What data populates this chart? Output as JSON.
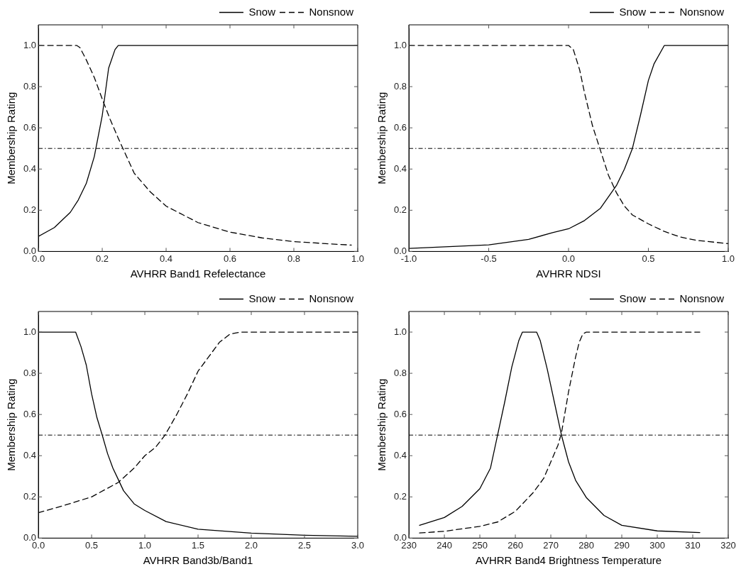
{
  "chart_data": [
    {
      "type": "line",
      "xlabel": "AVHRR Band1 Refelectance",
      "ylabel": "Membership Rating",
      "legend": "top right",
      "marker": "none",
      "grid": false,
      "xlim": [
        0,
        1
      ],
      "xticks": [
        {
          "value": 0,
          "label": "0.0"
        },
        {
          "value": 0.2,
          "label": "0.2"
        },
        {
          "value": 0.4,
          "label": "0.4"
        },
        {
          "value": 0.6,
          "label": "0.6"
        },
        {
          "value": 0.8,
          "label": "0.8"
        },
        {
          "value": 1,
          "label": "1.0"
        }
      ],
      "ylim": [
        0,
        1.1
      ],
      "yticks": [
        {
          "value": 0,
          "label": "0.0"
        },
        {
          "value": 0.2,
          "label": "0.2"
        },
        {
          "value": 0.4,
          "label": "0.4"
        },
        {
          "value": 0.6,
          "label": "0.6"
        },
        {
          "value": 0.8,
          "label": "0.8"
        },
        {
          "value": 1,
          "label": "1.0"
        }
      ],
      "ref_lines": [
        {
          "axis": "y",
          "value": 0.5,
          "color": "#000000"
        }
      ],
      "series": [
        {
          "name": "Snow",
          "color": "#000000",
          "line_style": "solid",
          "x": [
            0,
            0.05,
            0.1,
            0.125,
            0.15,
            0.175,
            0.2,
            0.22,
            0.24,
            0.25,
            1.0
          ],
          "values": [
            0.073,
            0.116,
            0.19,
            0.25,
            0.33,
            0.46,
            0.66,
            0.89,
            0.98,
            1.0,
            1.0
          ]
        },
        {
          "name": "Nonsnow",
          "color": "#000000",
          "line_style": "dashed",
          "x": [
            0,
            0.12,
            0.13,
            0.15,
            0.175,
            0.2,
            0.225,
            0.25,
            0.3,
            0.35,
            0.4,
            0.5,
            0.6,
            0.7,
            0.8,
            0.9,
            0.98
          ],
          "values": [
            1.0,
            1.0,
            0.99,
            0.93,
            0.845,
            0.74,
            0.64,
            0.55,
            0.38,
            0.29,
            0.22,
            0.14,
            0.094,
            0.066,
            0.048,
            0.038,
            0.031
          ]
        }
      ]
    },
    {
      "type": "line",
      "xlabel": "AVHRR NDSI",
      "ylabel": "Membership Rating",
      "legend": "top right",
      "marker": "none",
      "grid": false,
      "xlim": [
        -1,
        1
      ],
      "xticks": [
        {
          "value": -1,
          "label": "-1.0"
        },
        {
          "value": -0.5,
          "label": "-0.5"
        },
        {
          "value": 0,
          "label": "0.0"
        },
        {
          "value": 0.5,
          "label": "0.5"
        },
        {
          "value": 1,
          "label": "1.0"
        }
      ],
      "ylim": [
        0,
        1.1
      ],
      "yticks": [
        {
          "value": 0,
          "label": "0.0"
        },
        {
          "value": 0.2,
          "label": "0.2"
        },
        {
          "value": 0.4,
          "label": "0.4"
        },
        {
          "value": 0.6,
          "label": "0.6"
        },
        {
          "value": 0.8,
          "label": "0.8"
        },
        {
          "value": 1,
          "label": "1.0"
        }
      ],
      "ref_lines": [
        {
          "axis": "y",
          "value": 0.5,
          "color": "#000000"
        }
      ],
      "series": [
        {
          "name": "Snow",
          "color": "#000000",
          "line_style": "solid",
          "x": [
            -1,
            -0.5,
            -0.25,
            -0.1,
            0,
            0.1,
            0.2,
            0.3,
            0.35,
            0.4,
            0.45,
            0.5,
            0.535,
            0.6,
            1.0
          ],
          "values": [
            0.015,
            0.032,
            0.059,
            0.091,
            0.11,
            0.15,
            0.21,
            0.32,
            0.4,
            0.5,
            0.66,
            0.83,
            0.91,
            1.0,
            1.0
          ]
        },
        {
          "name": "Nonsnow",
          "color": "#000000",
          "line_style": "dashed",
          "x": [
            -1,
            0,
            0.03,
            0.07,
            0.1,
            0.15,
            0.2,
            0.25,
            0.3,
            0.35,
            0.4,
            0.5,
            0.6,
            0.7,
            0.8,
            1.0
          ],
          "values": [
            1.0,
            1.0,
            0.98,
            0.88,
            0.77,
            0.61,
            0.49,
            0.37,
            0.285,
            0.22,
            0.177,
            0.134,
            0.097,
            0.07,
            0.054,
            0.038
          ]
        }
      ]
    },
    {
      "type": "line",
      "xlabel": "AVHRR Band3b/Band1",
      "ylabel": "Membership Rating",
      "legend": "top right",
      "marker": "none",
      "grid": false,
      "xlim": [
        0,
        3
      ],
      "xticks": [
        {
          "value": 0,
          "label": "0.0"
        },
        {
          "value": 0.5,
          "label": "0.5"
        },
        {
          "value": 1,
          "label": "1.0"
        },
        {
          "value": 1.5,
          "label": "1.5"
        },
        {
          "value": 2,
          "label": "2.0"
        },
        {
          "value": 2.5,
          "label": "2.5"
        },
        {
          "value": 3,
          "label": "3.0"
        }
      ],
      "ylim": [
        0,
        1.1
      ],
      "yticks": [
        {
          "value": 0,
          "label": "0.0"
        },
        {
          "value": 0.2,
          "label": "0.2"
        },
        {
          "value": 0.4,
          "label": "0.4"
        },
        {
          "value": 0.6,
          "label": "0.6"
        },
        {
          "value": 0.8,
          "label": "0.8"
        },
        {
          "value": 1,
          "label": "1.0"
        }
      ],
      "ref_lines": [
        {
          "axis": "y",
          "value": 0.5,
          "color": "#000000"
        }
      ],
      "series": [
        {
          "name": "Snow",
          "color": "#000000",
          "line_style": "solid",
          "x": [
            0,
            0.35,
            0.4,
            0.45,
            0.5,
            0.55,
            0.6,
            0.65,
            0.7,
            0.75,
            0.8,
            0.9,
            1.0,
            1.2,
            1.5,
            2.0,
            2.5,
            3.0
          ],
          "values": [
            1.0,
            1.0,
            0.93,
            0.84,
            0.7,
            0.585,
            0.5,
            0.41,
            0.34,
            0.285,
            0.23,
            0.166,
            0.134,
            0.08,
            0.043,
            0.024,
            0.014,
            0.009
          ]
        },
        {
          "name": "Nonsnow",
          "color": "#000000",
          "line_style": "dashed",
          "x": [
            0,
            0.25,
            0.5,
            0.75,
            0.9,
            1.0,
            1.1,
            1.19,
            1.3,
            1.4,
            1.5,
            1.6,
            1.7,
            1.8,
            1.9,
            3.0
          ],
          "values": [
            0.123,
            0.16,
            0.2,
            0.27,
            0.34,
            0.4,
            0.44,
            0.5,
            0.6,
            0.7,
            0.81,
            0.88,
            0.95,
            0.99,
            1.0,
            1.0
          ]
        }
      ]
    },
    {
      "type": "line",
      "xlabel": "AVHRR Band4 Brightness Temperature",
      "ylabel": "Membership Rating",
      "legend": "top right",
      "marker": "none",
      "grid": false,
      "xlim": [
        230,
        320
      ],
      "xticks": [
        230,
        240,
        250,
        260,
        270,
        280,
        290,
        300,
        310,
        320
      ],
      "ylim": [
        0,
        1.1
      ],
      "yticks": [
        {
          "value": 0,
          "label": "0.0"
        },
        {
          "value": 0.2,
          "label": "0.2"
        },
        {
          "value": 0.4,
          "label": "0.4"
        },
        {
          "value": 0.6,
          "label": "0.6"
        },
        {
          "value": 0.8,
          "label": "0.8"
        },
        {
          "value": 1,
          "label": "1.0"
        }
      ],
      "ref_lines": [
        {
          "axis": "y",
          "value": 0.5,
          "color": "#000000"
        }
      ],
      "series": [
        {
          "name": "Snow",
          "color": "#000000",
          "line_style": "solid",
          "x": [
            233,
            240,
            245,
            250,
            253,
            255,
            257,
            259,
            261,
            262,
            266,
            267,
            269,
            271,
            273,
            275,
            277,
            280,
            285,
            290,
            300,
            312
          ],
          "values": [
            0.062,
            0.1,
            0.154,
            0.24,
            0.34,
            0.5,
            0.66,
            0.83,
            0.96,
            1.0,
            1.0,
            0.96,
            0.82,
            0.66,
            0.5,
            0.37,
            0.28,
            0.197,
            0.11,
            0.062,
            0.035,
            0.027
          ]
        },
        {
          "name": "Nonsnow",
          "color": "#000000",
          "line_style": "dashed",
          "x": [
            233,
            240,
            250,
            255,
            260,
            265,
            268,
            270,
            272,
            273,
            275,
            277,
            278,
            279,
            280,
            312
          ],
          "values": [
            0.025,
            0.033,
            0.057,
            0.078,
            0.13,
            0.22,
            0.29,
            0.37,
            0.45,
            0.51,
            0.71,
            0.88,
            0.95,
            0.99,
            1.0,
            1.0
          ]
        }
      ]
    }
  ]
}
